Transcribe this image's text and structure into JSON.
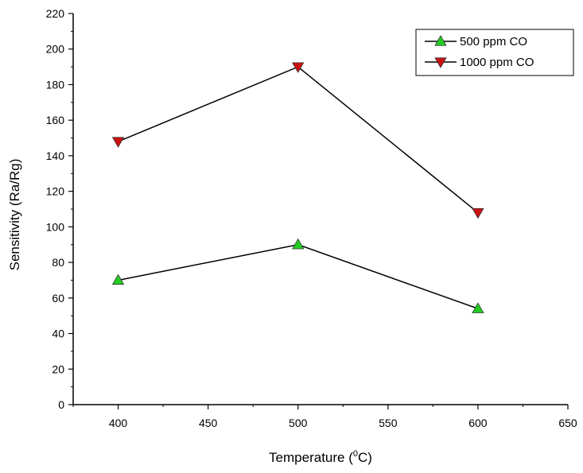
{
  "chart_data": {
    "type": "line",
    "title": "",
    "xlabel_prefix": "Temperature (",
    "xlabel_sup": "0",
    "xlabel_suffix": "C)",
    "ylabel": "Sensitivity (Ra/Rg)",
    "xlim": [
      375,
      650
    ],
    "ylim": [
      0,
      220
    ],
    "x_ticks": [
      400,
      450,
      500,
      550,
      600,
      650
    ],
    "y_ticks": [
      0,
      20,
      40,
      60,
      80,
      100,
      120,
      140,
      160,
      180,
      200,
      220
    ],
    "grid": false,
    "legend_position": "top-right",
    "series": [
      {
        "name": "500 ppm CO",
        "marker": "triangle-up",
        "color": "#22cc22",
        "x": [
          400,
          500,
          600
        ],
        "y": [
          70,
          90,
          54
        ]
      },
      {
        "name": "1000 ppm CO",
        "marker": "triangle-down",
        "color": "#cc1111",
        "x": [
          400,
          500,
          600
        ],
        "y": [
          148,
          190,
          108
        ]
      }
    ]
  }
}
